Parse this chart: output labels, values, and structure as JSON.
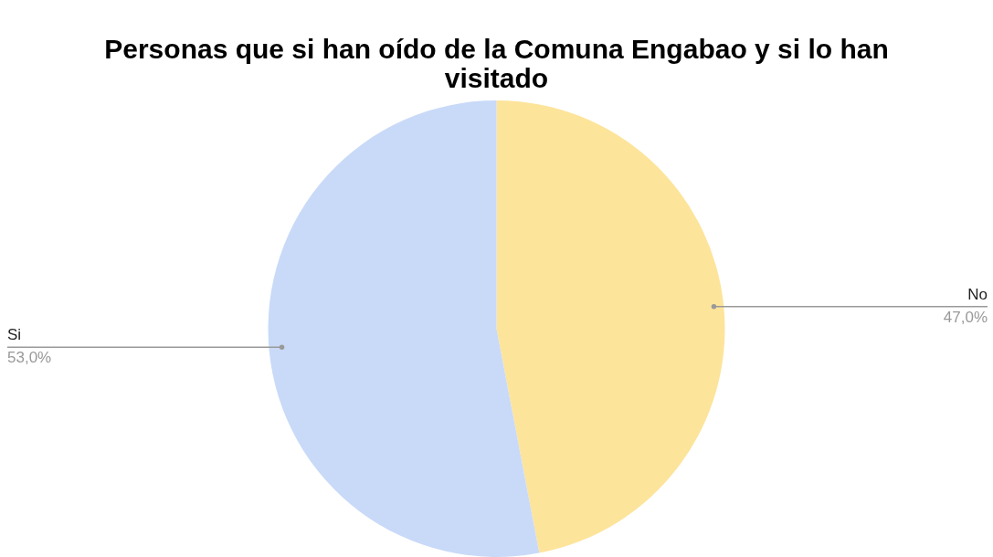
{
  "chart_data": {
    "type": "pie",
    "title": "Personas que si han oído de la Comuna Engabao y si lo han visitado",
    "categories": [
      "No",
      "Si"
    ],
    "values": [
      47,
      53
    ],
    "colors": [
      "#fde49b",
      "#c9daf8"
    ],
    "value_labels": [
      "47,0%",
      "53,0%"
    ],
    "legend": false
  }
}
